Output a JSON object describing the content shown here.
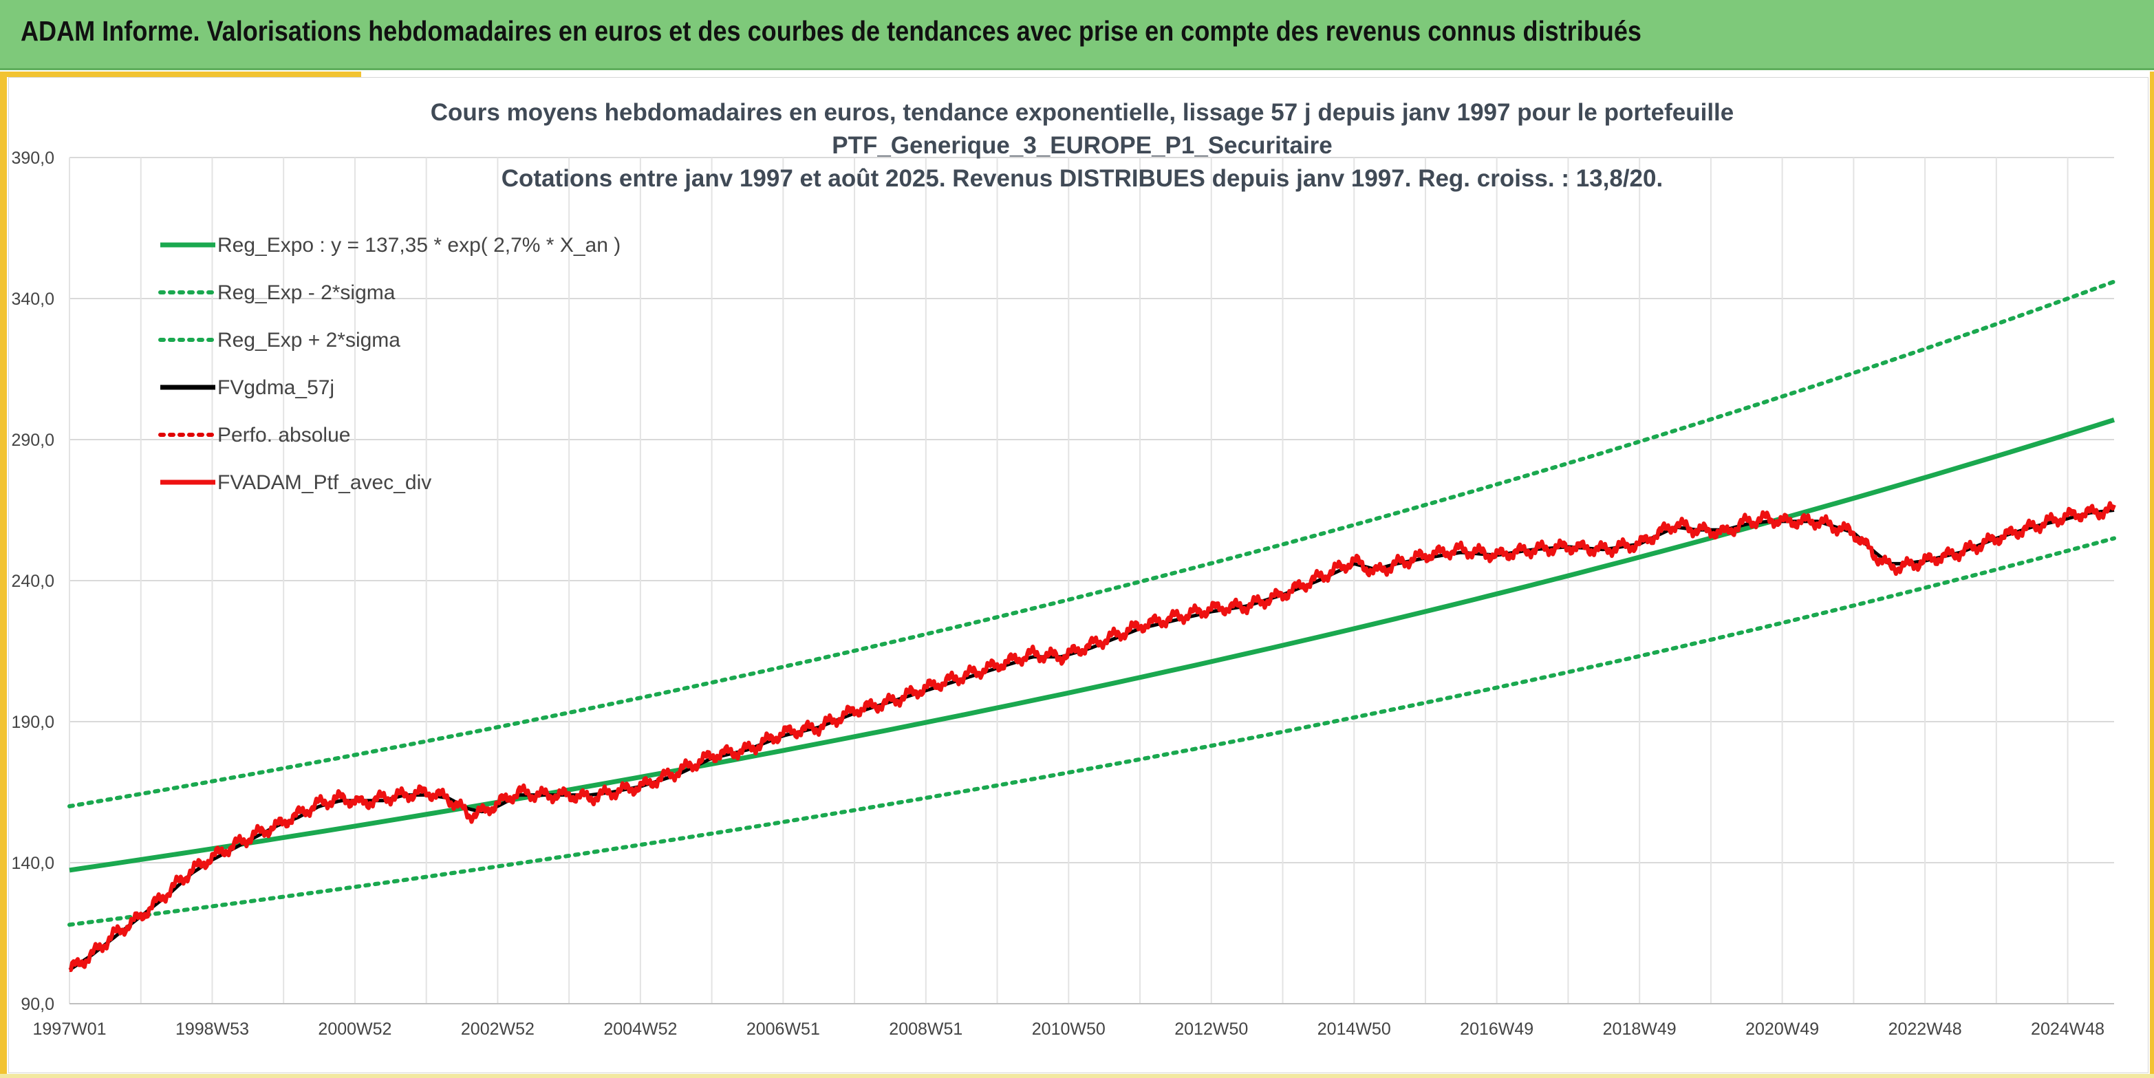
{
  "banner": {
    "title": "ADAM Informe. Valorisations hebdomadaires en euros et des courbes de tendances avec prise en compte des revenus connus distribués"
  },
  "colors": {
    "banner": "#7ec97a",
    "accent": "#f2c332",
    "regression": "#1aa84f",
    "sigma_bands": "#1aa84f",
    "fvgdma": "#000000",
    "perfo": "#e00000",
    "fvadam": "#ee1111"
  },
  "chart_data": {
    "type": "line",
    "title": [
      "Cours moyens hebdomadaires en euros, tendance exponentielle, lissage 57 j depuis janv 1997 pour le portefeuille",
      "PTF_Generique_3_EUROPE_P1_Securitaire",
      "Cotations entre janv 1997 et août 2025. Revenus DISTRIBUES depuis janv 1997. Reg. croiss. : 13,8/20."
    ],
    "xlabel": "",
    "ylabel": "",
    "ylim": [
      90,
      390
    ],
    "xlim": [
      1997.0,
      2025.65
    ],
    "y_ticks": [
      "390,0",
      "340,0",
      "290,0",
      "240,0",
      "190,0",
      "140,0",
      "90,0"
    ],
    "x_tick_labels": [
      "1997W01",
      "1998W53",
      "2000W52",
      "2002W52",
      "2004W52",
      "2006W51",
      "2008W51",
      "2010W50",
      "2012W50",
      "2014W50",
      "2016W49",
      "2018W49",
      "2020W49",
      "2022W48",
      "2024W48"
    ],
    "x_tick_years": [
      1997.0,
      1999.0,
      2001.0,
      2003.0,
      2005.0,
      2007.0,
      2009.0,
      2011.0,
      2013.0,
      2015.0,
      2017.0,
      2019.0,
      2021.0,
      2023.0,
      2025.0
    ],
    "grid": true,
    "legend_position": "top-left",
    "legend": [
      {
        "label": "Reg_Expo : y = 137,35 * exp( 2,7% *  X_an )",
        "style": "solid",
        "color": "#1aa84f"
      },
      {
        "label": "Reg_Exp - 2*sigma",
        "style": "dotted",
        "color": "#1aa84f"
      },
      {
        "label": "Reg_Exp + 2*sigma",
        "style": "dotted",
        "color": "#1aa84f"
      },
      {
        "label": "FVgdma_57j",
        "style": "solid",
        "color": "#000000"
      },
      {
        "label": "Perfo. absolue",
        "style": "dotted",
        "color": "#e00000"
      },
      {
        "label": "FVADAM_Ptf_avec_div",
        "style": "solid",
        "color": "#ee1111"
      }
    ],
    "series": [
      {
        "name": "Reg_Expo : y = 137,35 * exp( 2,7% *  X_an )",
        "x": [
          1997,
          2025.65
        ],
        "y": [
          137.35,
          297
        ]
      },
      {
        "name": "Reg_Exp - 2*sigma",
        "x": [
          1997,
          2025.65
        ],
        "y": [
          118,
          255
        ]
      },
      {
        "name": "Reg_Exp + 2*sigma",
        "x": [
          1997,
          2025.65
        ],
        "y": [
          160,
          346
        ]
      },
      {
        "name": "FVADAM_Ptf_avec_div",
        "x": [
          1997.0,
          1997.3,
          1997.6,
          1998.0,
          1998.4,
          1998.7,
          1999.0,
          1999.3,
          1999.6,
          1999.9,
          2000.2,
          2000.5,
          2000.8,
          2001.1,
          2001.4,
          2001.7,
          2002.0,
          2002.3,
          2002.6,
          2002.8,
          2003.0,
          2003.3,
          2003.6,
          2004.0,
          2004.3,
          2004.6,
          2005.0,
          2005.5,
          2006.0,
          2006.5,
          2007.0,
          2007.5,
          2008.0,
          2008.5,
          2009.0,
          2009.5,
          2010.0,
          2010.5,
          2010.9,
          2011.3,
          2011.7,
          2012.0,
          2012.5,
          2013.0,
          2013.5,
          2014.0,
          2014.5,
          2015.0,
          2015.3,
          2015.6,
          2016.0,
          2016.5,
          2017.0,
          2017.5,
          2018.0,
          2018.5,
          2019.0,
          2019.5,
          2019.8,
          2020.2,
          2020.5,
          2020.8,
          2021.0,
          2021.5,
          2022.0,
          2022.3,
          2022.5,
          2022.7,
          2023.0,
          2023.5,
          2024.0,
          2024.5,
          2025.0,
          2025.3,
          2025.65
        ],
        "y": [
          102,
          107,
          114,
          121,
          130,
          137,
          142,
          146,
          150,
          153,
          157,
          161,
          163,
          161,
          163,
          164,
          165,
          163,
          157,
          158,
          161,
          165,
          164,
          164,
          163,
          165,
          167,
          172,
          178,
          180,
          186,
          188,
          194,
          197,
          202,
          206,
          210,
          214,
          213,
          217,
          221,
          224,
          227,
          230,
          231,
          235,
          241,
          247,
          243,
          246,
          249,
          251,
          249,
          251,
          252,
          251,
          253,
          260,
          258,
          257,
          261,
          262,
          261,
          261,
          257,
          249,
          245,
          245,
          247,
          250,
          255,
          259,
          263,
          264,
          265
        ]
      },
      {
        "name": "FVgdma_57j",
        "x": [
          1997.0,
          1997.3,
          1997.6,
          1998.0,
          1998.4,
          1998.7,
          1999.0,
          1999.3,
          1999.6,
          1999.9,
          2000.2,
          2000.5,
          2000.8,
          2001.1,
          2001.4,
          2001.7,
          2002.0,
          2002.3,
          2002.6,
          2002.8,
          2003.0,
          2003.3,
          2003.6,
          2004.0,
          2004.3,
          2004.6,
          2005.0,
          2005.5,
          2006.0,
          2006.5,
          2007.0,
          2007.5,
          2008.0,
          2008.5,
          2009.0,
          2009.5,
          2010.0,
          2010.5,
          2010.9,
          2011.3,
          2011.7,
          2012.0,
          2012.5,
          2013.0,
          2013.5,
          2014.0,
          2014.5,
          2015.0,
          2015.3,
          2015.6,
          2016.0,
          2016.5,
          2017.0,
          2017.5,
          2018.0,
          2018.5,
          2019.0,
          2019.5,
          2019.8,
          2020.2,
          2020.5,
          2020.8,
          2021.0,
          2021.5,
          2022.0,
          2022.3,
          2022.5,
          2022.7,
          2023.0,
          2023.5,
          2024.0,
          2024.5,
          2025.0,
          2025.3,
          2025.65
        ],
        "y": [
          102,
          107,
          113,
          121,
          129,
          136,
          141,
          145,
          149,
          153,
          156,
          160,
          162,
          162,
          162,
          164,
          164,
          163,
          159,
          158,
          160,
          164,
          164,
          164,
          164,
          165,
          167,
          171,
          177,
          180,
          185,
          188,
          193,
          197,
          201,
          205,
          209,
          213,
          213,
          216,
          220,
          223,
          226,
          229,
          231,
          235,
          240,
          246,
          244,
          246,
          248,
          250,
          249,
          251,
          252,
          251,
          253,
          259,
          258,
          258,
          260,
          261,
          261,
          261,
          257,
          250,
          246,
          246,
          247,
          250,
          255,
          259,
          262,
          264,
          265
        ]
      }
    ]
  }
}
